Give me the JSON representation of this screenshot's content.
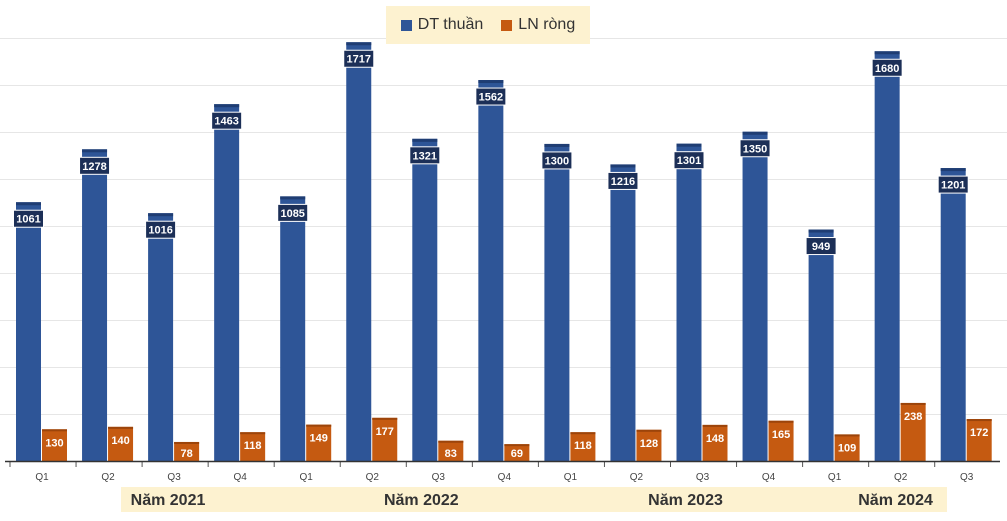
{
  "chart_data": {
    "type": "bar",
    "title": "",
    "xlabel": "",
    "ylabel": "",
    "ylim": [
      0,
      1800
    ],
    "categories": [
      "Q1",
      "Q2",
      "Q3",
      "Q4",
      "Q1",
      "Q2",
      "Q3",
      "Q4",
      "Q1",
      "Q2",
      "Q3",
      "Q4",
      "Q1",
      "Q2",
      "Q3"
    ],
    "groups": [
      {
        "label": "Năm 2021",
        "quarters": 4
      },
      {
        "label": "Năm 2022",
        "quarters": 4
      },
      {
        "label": "Năm 2023",
        "quarters": 4
      },
      {
        "label": "Năm 2024",
        "quarters": 3
      }
    ],
    "series": [
      {
        "name": "DT thuần",
        "color": "#2e5597",
        "values": [
          1061,
          1278,
          1016,
          1463,
          1085,
          1717,
          1321,
          1562,
          1300,
          1216,
          1301,
          1350,
          949,
          1680,
          1201
        ]
      },
      {
        "name": "LN ròng",
        "color": "#c55a11",
        "values": [
          130,
          140,
          78,
          118,
          149,
          177,
          83,
          69,
          118,
          128,
          148,
          165,
          109,
          238,
          172
        ]
      }
    ],
    "legend_position": "top-center",
    "grid": true
  }
}
